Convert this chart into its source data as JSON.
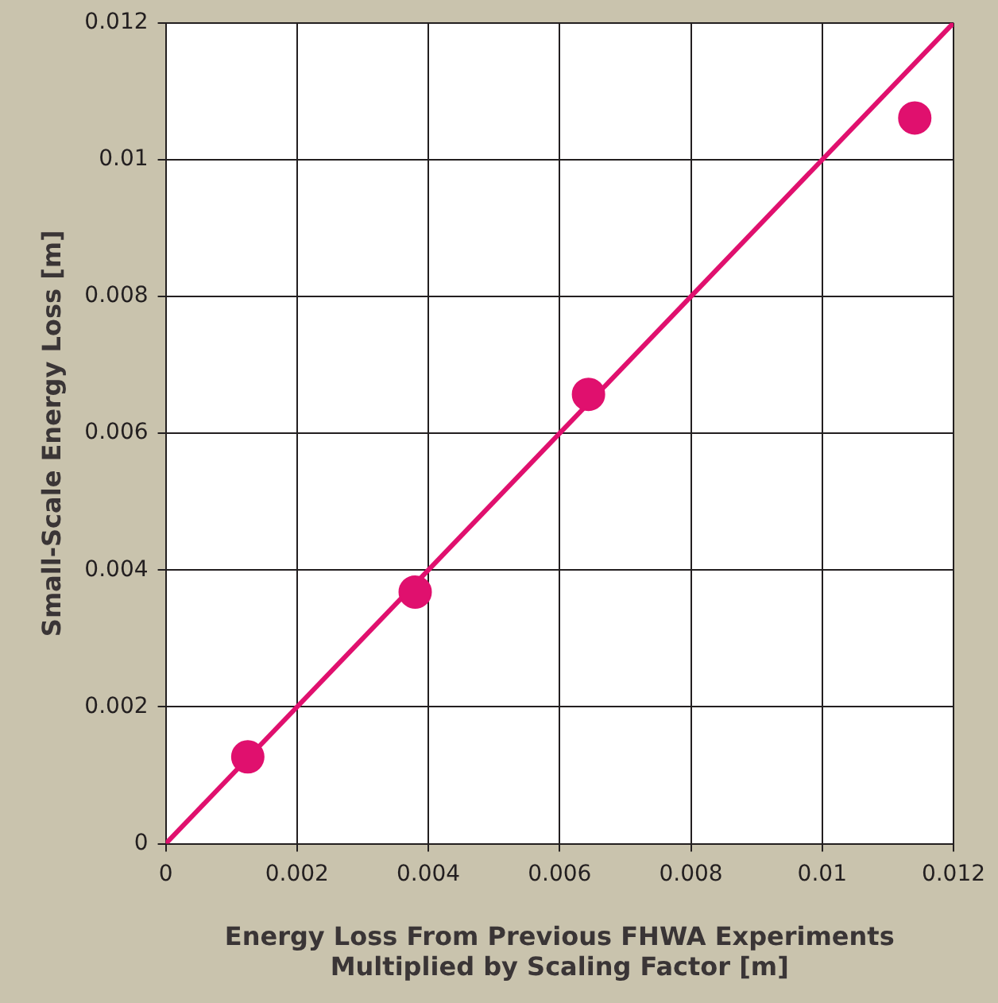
{
  "chart_data": {
    "type": "scatter",
    "xlabel": "Energy Loss From Previous FHWA Experiments\nMultiplied by Scaling Factor [m]",
    "ylabel": "Small-Scale Energy Loss [m]",
    "xlim": [
      0,
      0.012
    ],
    "ylim": [
      0,
      0.012
    ],
    "xticks": [
      0,
      0.002,
      0.004,
      0.006,
      0.008,
      0.01,
      0.012
    ],
    "yticks": [
      0,
      0.002,
      0.004,
      0.006,
      0.008,
      0.01,
      0.012
    ],
    "grid": true,
    "legend": false,
    "marker": "circle",
    "series": [
      {
        "type": "scatter",
        "color": "#e0106e",
        "x": [
          0.00125,
          0.0038,
          0.00644,
          0.01141
        ],
        "values": [
          0.00127,
          0.00368,
          0.00657,
          0.01061
        ]
      },
      {
        "type": "line",
        "color": "#e0106e",
        "x": [
          0,
          0.012
        ],
        "values": [
          0,
          0.012
        ],
        "marker": "none",
        "line_style": "solid"
      }
    ]
  }
}
